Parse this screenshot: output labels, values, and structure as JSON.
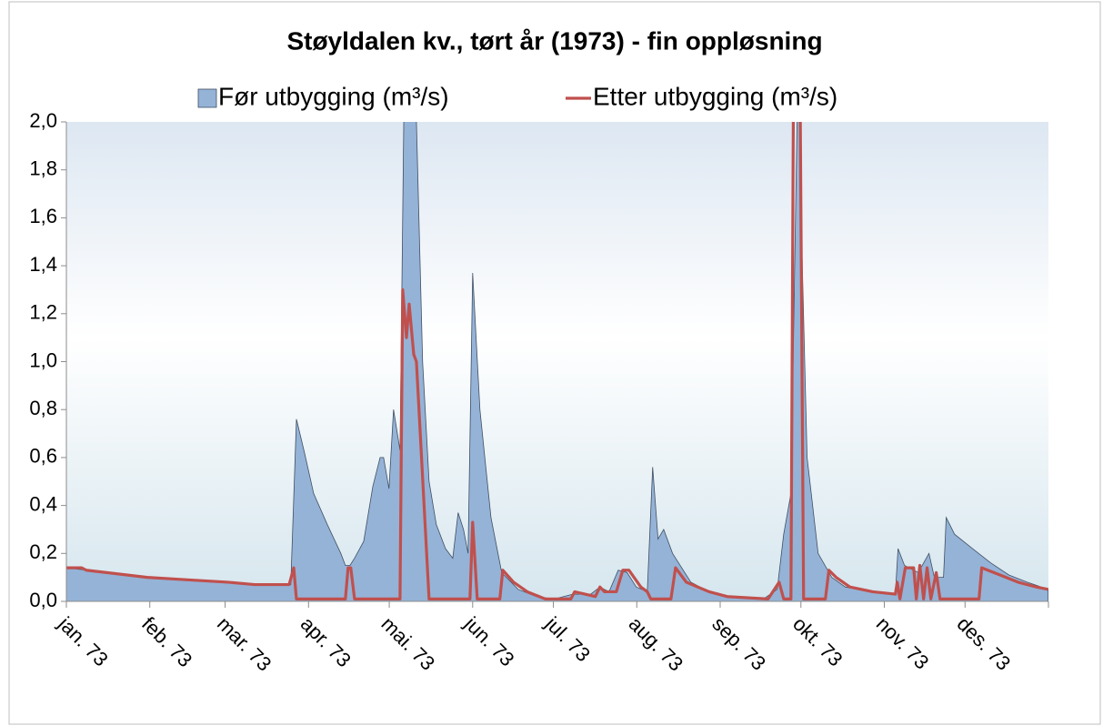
{
  "chart_data": {
    "type": "area-line",
    "title": "Støyldalen kv., tørt år (1973) - fin oppløsning",
    "legend": "top",
    "xlim": [
      0,
      365
    ],
    "xticks": [
      {
        "value": 0,
        "label": "jan. 73"
      },
      {
        "value": 31,
        "label": "feb. 73"
      },
      {
        "value": 59,
        "label": "mar. 73"
      },
      {
        "value": 90,
        "label": "apr. 73"
      },
      {
        "value": 120,
        "label": "mai. 73"
      },
      {
        "value": 151,
        "label": "jun. 73"
      },
      {
        "value": 181,
        "label": "jul. 73"
      },
      {
        "value": 212,
        "label": "aug. 73"
      },
      {
        "value": 243,
        "label": "sep. 73"
      },
      {
        "value": 273,
        "label": "okt. 73"
      },
      {
        "value": 304,
        "label": "nov. 73"
      },
      {
        "value": 334,
        "label": "des. 73"
      }
    ],
    "ylim": [
      0,
      2
    ],
    "yticks": [
      {
        "value": 0,
        "label": "0,0"
      },
      {
        "value": 0.2,
        "label": "0,2"
      },
      {
        "value": 0.4,
        "label": "0,4"
      },
      {
        "value": 0.6,
        "label": "0,6"
      },
      {
        "value": 0.8,
        "label": "0,8"
      },
      {
        "value": 1,
        "label": "1,0"
      },
      {
        "value": 1.2,
        "label": "1,2"
      },
      {
        "value": 1.4,
        "label": "1,4"
      },
      {
        "value": 1.6,
        "label": "1,6"
      },
      {
        "value": 1.8,
        "label": "1,8"
      },
      {
        "value": 2,
        "label": "2,0"
      }
    ],
    "series": [
      {
        "name": "Før utbygging (m³/s)",
        "kind": "area",
        "color": "#95b3d7",
        "x": [
          0,
          15,
          30,
          45,
          60,
          70,
          83.4,
          85.5,
          88.5,
          91.9,
          97,
          102,
          103.7,
          105.4,
          107.1,
          110.5,
          113.9,
          116.6,
          117.9,
          119.9,
          121.6,
          124,
          125.7,
          130.1,
          132.4,
          134.8,
          137.5,
          140.9,
          143.6,
          145.6,
          147.6,
          149.3,
          151,
          153.7,
          157.8,
          161.8,
          167.9,
          174.7,
          181.4,
          188.2,
          194.9,
          198.3,
          201.7,
          205.1,
          208.4,
          211.8,
          215.9,
          217.9,
          219.9,
          222,
          225.3,
          232.1,
          238.9,
          245.6,
          259.1,
          264.2,
          266.6,
          269.3,
          272,
          273.3,
          275.3,
          279.4,
          284.5,
          289.5,
          299.7,
          308.1,
          309.1,
          311.5,
          316.6,
          320.6,
          322.6,
          326,
          327,
          330.1,
          336.8,
          343.6,
          350.3,
          357.1,
          364.9
        ],
        "values": [
          0.14,
          0.12,
          0.1,
          0.09,
          0.08,
          0.07,
          0.07,
          0.76,
          0.62,
          0.45,
          0.32,
          0.2,
          0.15,
          0.15,
          0.18,
          0.25,
          0.48,
          0.6,
          0.6,
          0.47,
          0.8,
          0.63,
          2.3,
          2.0,
          1.0,
          0.5,
          0.32,
          0.22,
          0.18,
          0.37,
          0.3,
          0.2,
          1.37,
          0.8,
          0.35,
          0.12,
          0.05,
          0.02,
          0.01,
          0.03,
          0.03,
          0.06,
          0.04,
          0.13,
          0.12,
          0.06,
          0.04,
          0.56,
          0.26,
          0.3,
          0.2,
          0.08,
          0.04,
          0.02,
          0.01,
          0.05,
          0.28,
          0.45,
          2.3,
          1.5,
          0.6,
          0.2,
          0.1,
          0.06,
          0.04,
          0.03,
          0.22,
          0.15,
          0.12,
          0.2,
          0.1,
          0.1,
          0.35,
          0.28,
          0.22,
          0.16,
          0.11,
          0.08,
          0.05
        ]
      },
      {
        "name": "Etter utbygging (m³/s)",
        "kind": "line",
        "color": "#c0504d",
        "x": [
          0,
          5.7,
          7.4,
          15,
          30,
          45,
          60,
          70,
          82.8,
          84.5,
          85.5,
          103.7,
          104.7,
          105.7,
          107.1,
          124,
          125,
          126.4,
          127.4,
          129.1,
          130.1,
          134.8,
          150,
          151,
          152.7,
          161.1,
          162.2,
          166.2,
          171.3,
          178,
          187.5,
          188.9,
          196.6,
          198.3,
          200,
          204.4,
          206.8,
          209.1,
          213.5,
          215.9,
          217.2,
          224.7,
          226.4,
          230.4,
          238.9,
          245.6,
          260.8,
          264.9,
          266.6,
          269.3,
          270.3,
          272.6,
          274,
          282.1,
          283.4,
          286.1,
          291.2,
          299.7,
          308.1,
          308.8,
          309.8,
          311.8,
          314.9,
          315.9,
          317.2,
          318.6,
          319.9,
          321.3,
          323.3,
          324.7,
          339.2,
          340.2,
          347,
          353.7,
          360.5,
          364.9
        ],
        "values": [
          0.14,
          0.14,
          0.13,
          0.12,
          0.1,
          0.09,
          0.08,
          0.07,
          0.07,
          0.14,
          0.01,
          0.01,
          0.14,
          0.14,
          0.01,
          0.01,
          1.3,
          1.1,
          1.24,
          1.03,
          1.0,
          0.01,
          0.01,
          0.33,
          0.01,
          0.01,
          0.13,
          0.08,
          0.04,
          0.01,
          0.01,
          0.04,
          0.02,
          0.06,
          0.04,
          0.04,
          0.13,
          0.13,
          0.06,
          0.04,
          0.01,
          0.01,
          0.14,
          0.08,
          0.04,
          0.02,
          0.01,
          0.08,
          0.01,
          0.01,
          2.3,
          2.3,
          0.01,
          0.01,
          0.13,
          0.1,
          0.06,
          0.04,
          0.03,
          0.08,
          0.01,
          0.14,
          0.14,
          0.01,
          0.15,
          0.01,
          0.14,
          0.01,
          0.12,
          0.01,
          0.01,
          0.14,
          0.11,
          0.08,
          0.06,
          0.05
        ]
      }
    ]
  }
}
